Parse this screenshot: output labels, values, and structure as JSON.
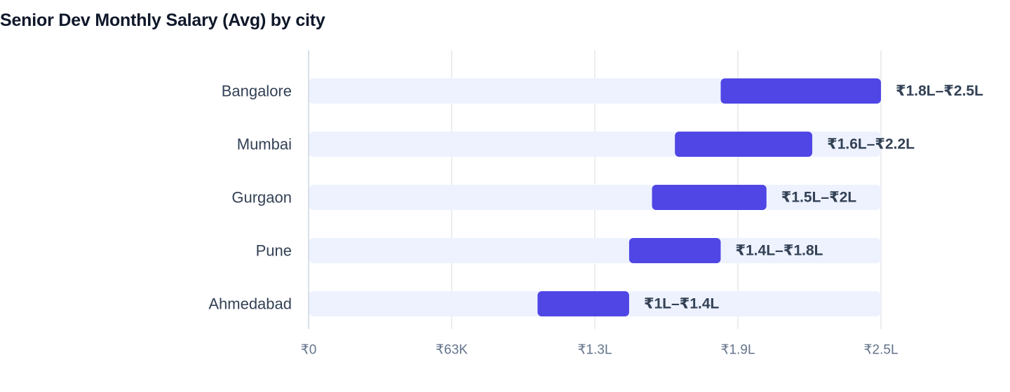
{
  "chart_data": {
    "type": "bar",
    "subtype": "range",
    "title": "Senior Dev Monthly Salary (Avg) by city",
    "categories": [
      "Bangalore",
      "Mumbai",
      "Gurgaon",
      "Pune",
      "Ahmedabad"
    ],
    "series": [
      {
        "ranges": [
          [
            180000,
            250000
          ],
          [
            160000,
            220000
          ],
          [
            150000,
            200000
          ],
          [
            140000,
            180000
          ],
          [
            100000,
            140000
          ]
        ],
        "labels": [
          "₹1.8L–₹2.5L",
          "₹1.6L–₹2.2L",
          "₹1.5L–₹2L",
          "₹1.4L–₹1.8L",
          "₹1L–₹1.4L"
        ]
      }
    ],
    "x_ticks": [
      {
        "value": 0,
        "label": "₹0"
      },
      {
        "value": 62500,
        "label": "₹63K"
      },
      {
        "value": 125000,
        "label": "₹1.3L"
      },
      {
        "value": 187500,
        "label": "₹1.9L"
      },
      {
        "value": 250000,
        "label": "₹2.5L"
      }
    ],
    "xlim": [
      0,
      250000
    ],
    "xlabel": "",
    "ylabel": "",
    "grid": true,
    "colors": {
      "bar": "#4f46e5",
      "track": "#eef2ff",
      "grid": "#e5e7eb",
      "axis": "#cbd5e1"
    }
  }
}
